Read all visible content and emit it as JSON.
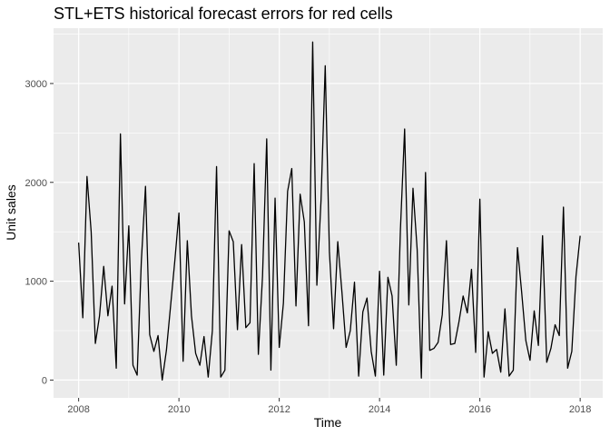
{
  "chart_data": {
    "type": "line",
    "title": "STL+ETS historical forecast errors for red cells",
    "xlabel": "Time",
    "ylabel": "Unit sales",
    "xlim": [
      2007.5,
      2018.45
    ],
    "ylim": [
      -180,
      3560
    ],
    "x_ticks": [
      2008,
      2010,
      2012,
      2014,
      2016,
      2018
    ],
    "x_tick_labels": [
      "2008",
      "2010",
      "2012",
      "2014",
      "2016",
      "2018"
    ],
    "y_ticks": [
      0,
      1000,
      2000,
      3000
    ],
    "y_tick_labels": [
      "0",
      "1000",
      "2000",
      "3000"
    ],
    "grid": true,
    "legend": "none",
    "colors": {
      "panel": "#ebebeb",
      "grid": "#ffffff",
      "line": "#000000"
    },
    "series": [
      {
        "start": 2008.0,
        "frequency": 12,
        "values": [
          1390,
          630,
          2060,
          1500,
          370,
          650,
          1150,
          650,
          950,
          120,
          2490,
          770,
          1560,
          150,
          50,
          1200,
          1960,
          460,
          290,
          450,
          0,
          300,
          750,
          1200,
          1690,
          190,
          1410,
          650,
          270,
          150,
          440,
          30,
          500,
          2160,
          30,
          100,
          1510,
          1400,
          510,
          1370,
          530,
          580,
          2190,
          260,
          1050,
          2440,
          100,
          1840,
          330,
          780,
          1910,
          2140,
          750,
          1880,
          1600,
          550,
          3420,
          960,
          1820,
          3180,
          1300,
          520,
          1400,
          890,
          330,
          500,
          990,
          40,
          690,
          830,
          290,
          40,
          1100,
          50,
          1040,
          850,
          150,
          1530,
          2540,
          760,
          1940,
          1320,
          20,
          2100,
          300,
          320,
          380,
          660,
          1410,
          360,
          370,
          590,
          850,
          680,
          1120,
          280,
          1830,
          30,
          490,
          270,
          310,
          80,
          720,
          40,
          100,
          1340,
          890,
          400,
          200,
          700,
          350,
          1460,
          180,
          320,
          560,
          450,
          1750,
          120,
          290,
          1050,
          1460
        ]
      }
    ]
  }
}
